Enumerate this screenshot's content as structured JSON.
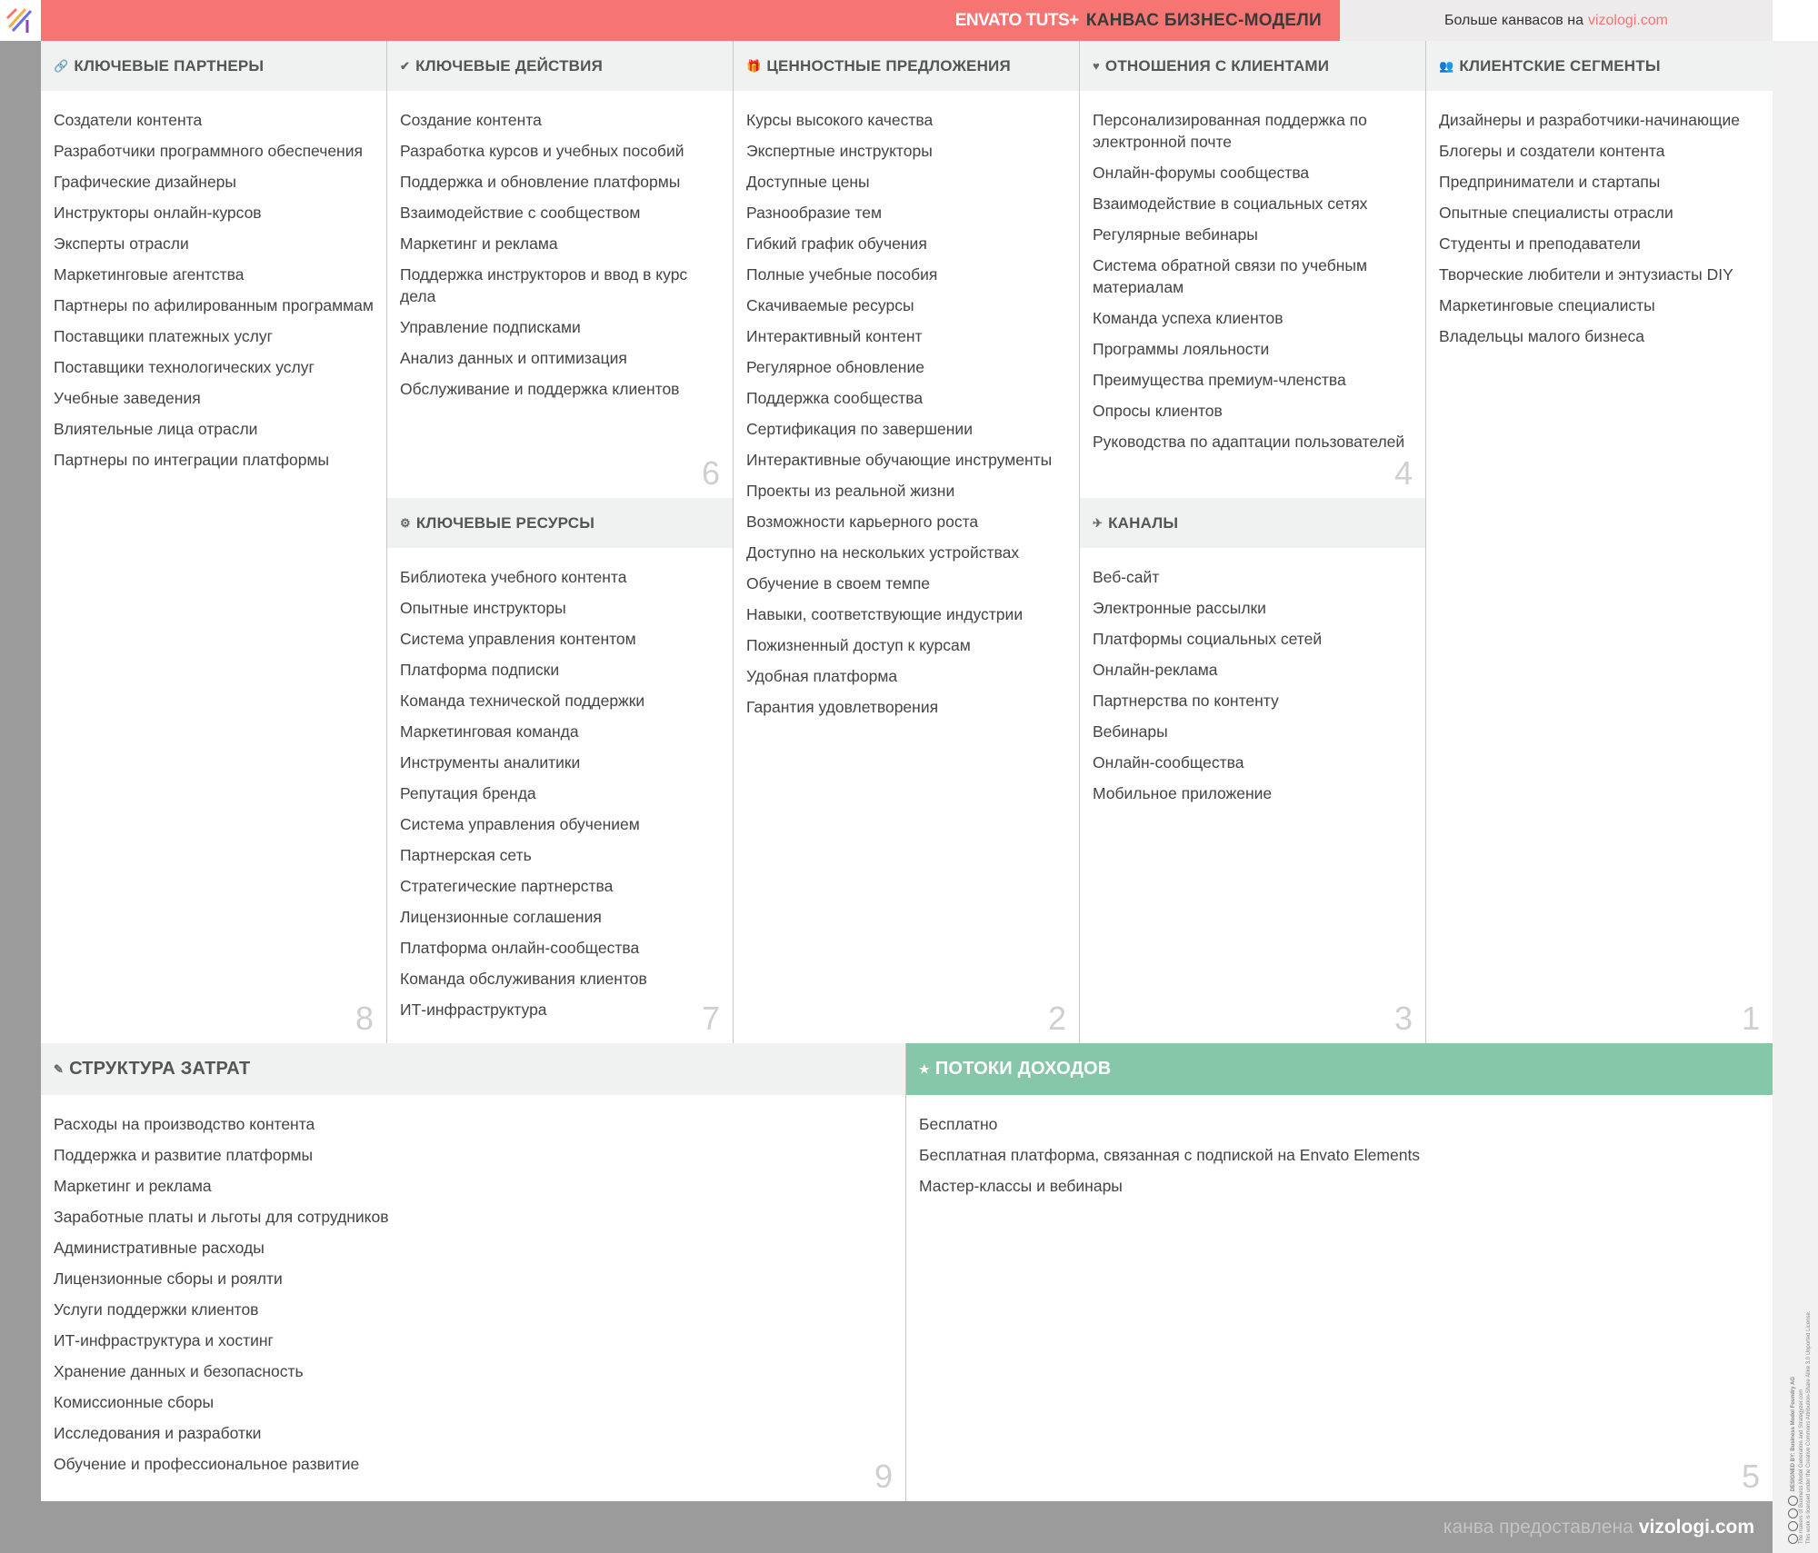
{
  "header": {
    "brand": "ENVATO TUTS+",
    "title": "КАНВАС БИЗНЕС-МОДЕЛИ",
    "more_text": "Больше канвасов на",
    "more_link": "vizologi.com"
  },
  "footer": {
    "text": "канва предоставлена",
    "link": "vizologi.com"
  },
  "license": {
    "designed_by": "DESIGNED BY: Business Model Foundry AG",
    "makers": "The makers of Business Model Generation and Strategyzer.com",
    "text": "This work is licensed under the Creative Commons Attribution-Share Alike 3.0 Unported License."
  },
  "colors": {
    "accent": "#f67573",
    "revenue": "#87c7a9"
  },
  "sections": {
    "partners": {
      "title": "КЛЮЧЕВЫЕ ПАРТНЕРЫ",
      "icon": "link-icon",
      "glyph": "🔗",
      "number": "8",
      "items": [
        "Создатели контента",
        "Разработчики программного обеспечения",
        "Графические дизайнеры",
        "Инструкторы онлайн-курсов",
        "Эксперты отрасли",
        "Маркетинговые агентства",
        "Партнеры по афилированным программам",
        "Поставщики платежных услуг",
        "Поставщики технологических услуг",
        "Учебные заведения",
        "Влиятельные лица отрасли",
        "Партнеры по интеграции платформы"
      ]
    },
    "activities": {
      "title": "КЛЮЧЕВЫЕ ДЕЙСТВИЯ",
      "icon": "check-icon",
      "glyph": "✔",
      "number": "6",
      "items": [
        "Создание контента",
        "Разработка курсов и учебных пособий",
        "Поддержка и обновление платформы",
        "Взаимодействие с сообществом",
        "Маркетинг и реклама",
        "Поддержка инструкторов и ввод в курс дела",
        "Управление подписками",
        "Анализ данных и оптимизация",
        "Обслуживание и поддержка клиентов"
      ]
    },
    "resources": {
      "title": "КЛЮЧЕВЫЕ РЕСУРСЫ",
      "icon": "gear-icon",
      "glyph": "⚙",
      "number": "7",
      "items": [
        "Библиотека учебного контента",
        "Опытные инструкторы",
        "Система управления контентом",
        "Платформа подписки",
        "Команда технической поддержки",
        "Маркетинговая команда",
        "Инструменты аналитики",
        "Репутация бренда",
        "Система управления обучением",
        "Партнерская сеть",
        "Стратегические партнерства",
        "Лицензионные соглашения",
        "Платформа онлайн-сообщества",
        "Команда обслуживания клиентов",
        "ИТ-инфраструктура"
      ]
    },
    "value": {
      "title": "ЦЕННОСТНЫЕ ПРЕДЛОЖЕНИЯ",
      "icon": "gift-icon",
      "glyph": "🎁",
      "number": "2",
      "items": [
        "Курсы высокого качества",
        "Экспертные инструкторы",
        "Доступные цены",
        "Разнообразие тем",
        "Гибкий график обучения",
        "Полные учебные пособия",
        "Скачиваемые ресурсы",
        "Интерактивный контент",
        "Регулярное обновление",
        "Поддержка сообщества",
        "Сертификация по завершении",
        "Интерактивные обучающие инструменты",
        "Проекты из реальной жизни",
        "Возможности карьерного роста",
        "Доступно на нескольких устройствах",
        "Обучение в своем темпе",
        "Навыки, соответствующие индустрии",
        "Пожизненный доступ к курсам",
        "Удобная платформа",
        "Гарантия удовлетворения"
      ]
    },
    "relationships": {
      "title": "ОТНОШЕНИЯ С КЛИЕНТАМИ",
      "icon": "heart-icon",
      "glyph": "♥",
      "number": "4",
      "items": [
        "Персонализированная поддержка по электронной почте",
        "Онлайн-форумы сообщества",
        "Взаимодействие в социальных сетях",
        "Регулярные вебинары",
        "Система обратной связи по учебным материалам",
        "Команда успеха клиентов",
        "Программы лояльности",
        "Преимущества премиум-членства",
        "Опросы клиентов",
        "Руководства по адаптации пользователей"
      ]
    },
    "channels": {
      "title": "КАНАЛЫ",
      "icon": "plane-icon",
      "glyph": "✈",
      "number": "3",
      "items": [
        "Веб-сайт",
        "Электронные рассылки",
        "Платформы социальных сетей",
        "Онлайн-реклама",
        "Партнерства по контенту",
        "Вебинары",
        "Онлайн-сообщества",
        "Мобильное приложение"
      ]
    },
    "segments": {
      "title": "КЛИЕНТСКИЕ СЕГМЕНТЫ",
      "icon": "people-icon",
      "glyph": "👥",
      "number": "1",
      "items": [
        "Дизайнеры и разработчики-начинающие",
        "Блогеры и создатели контента",
        "Предприниматели и стартапы",
        "Опытные специалисты отрасли",
        "Студенты и преподаватели",
        "Творческие любители и энтузиасты DIY",
        "Маркетинговые специалисты",
        "Владельцы малого бизнеса"
      ]
    },
    "costs": {
      "title": "СТРУКТУРА ЗАТРАТ",
      "icon": "tag-icon",
      "glyph": "✎",
      "number": "9",
      "items": [
        "Расходы на производство контента",
        "Поддержка и развитие платформы",
        "Маркетинг и реклама",
        "Заработные платы и льготы для сотрудников",
        "Административные расходы",
        "Лицензионные сборы и роялти",
        "Услуги поддержки клиентов",
        "ИТ-инфраструктура и хостинг",
        "Хранение данных и безопасность",
        "Комиссионные сборы",
        "Исследования и разработки",
        "Обучение и профессиональное развитие"
      ]
    },
    "revenue": {
      "title": "ПОТОКИ ДОХОДОВ",
      "icon": "star-icon",
      "glyph": "★",
      "number": "5",
      "items": [
        "Бесплатно",
        "Бесплатная платформа, связанная с подпиской на Envato Elements",
        "Мастер-классы и вебинары"
      ]
    }
  }
}
